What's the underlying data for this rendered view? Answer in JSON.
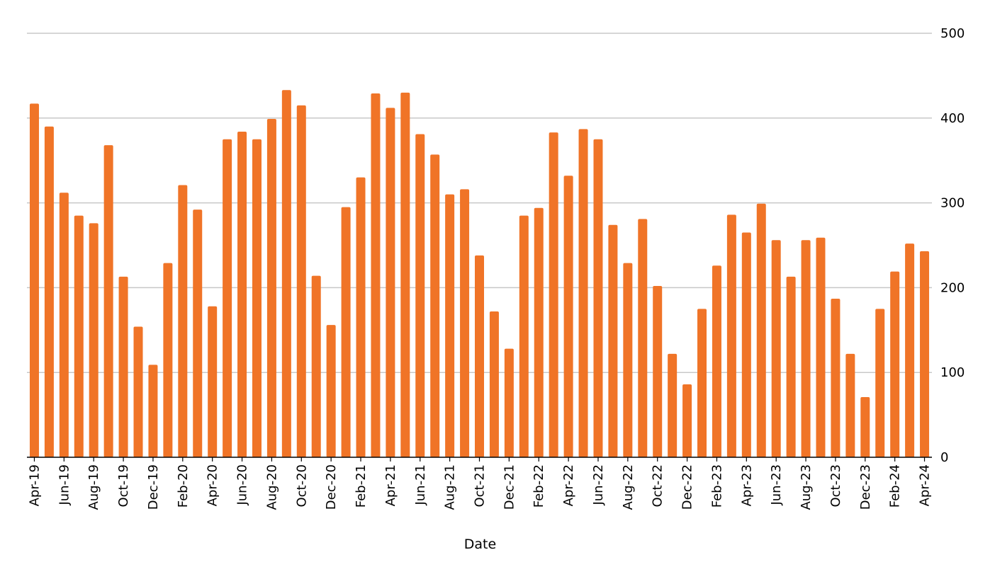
{
  "chart_data": {
    "type": "bar",
    "xlabel": "Date",
    "ylabel": "",
    "ylim": [
      0,
      500
    ],
    "y_ticks": [
      0,
      100,
      200,
      300,
      400,
      500
    ],
    "y_axis_side": "right",
    "grid": true,
    "legend": "none",
    "bar_color": "#F07427",
    "grid_color": "#C8C8C8",
    "categories": [
      "Apr-19",
      "May-19",
      "Jun-19",
      "Jul-19",
      "Aug-19",
      "Sep-19",
      "Oct-19",
      "Nov-19",
      "Dec-19",
      "Jan-20",
      "Feb-20",
      "Mar-20",
      "Apr-20",
      "May-20",
      "Jun-20",
      "Jul-20",
      "Aug-20",
      "Sep-20",
      "Oct-20",
      "Nov-20",
      "Dec-20",
      "Jan-21",
      "Feb-21",
      "Mar-21",
      "Apr-21",
      "May-21",
      "Jun-21",
      "Jul-21",
      "Aug-21",
      "Sep-21",
      "Oct-21",
      "Nov-21",
      "Dec-21",
      "Jan-22",
      "Feb-22",
      "Mar-22",
      "Apr-22",
      "May-22",
      "Jun-22",
      "Jul-22",
      "Aug-22",
      "Sep-22",
      "Oct-22",
      "Nov-22",
      "Dec-22",
      "Jan-23",
      "Feb-23",
      "Mar-23",
      "Apr-23",
      "May-23",
      "Jun-23",
      "Jul-23",
      "Aug-23",
      "Sep-23",
      "Oct-23",
      "Nov-23",
      "Dec-23",
      "Jan-24",
      "Feb-24",
      "Mar-24",
      "Apr-24"
    ],
    "tick_labels": [
      "Apr-19",
      "Jun-19",
      "Aug-19",
      "Oct-19",
      "Dec-19",
      "Feb-20",
      "Apr-20",
      "Jun-20",
      "Aug-20",
      "Oct-20",
      "Dec-20",
      "Feb-21",
      "Apr-21",
      "Jun-21",
      "Aug-21",
      "Oct-21",
      "Dec-21",
      "Feb-22",
      "Apr-22",
      "Jun-22",
      "Aug-22",
      "Oct-22",
      "Dec-22",
      "Feb-23",
      "Apr-23",
      "Jun-23",
      "Aug-23",
      "Oct-23",
      "Dec-23",
      "Feb-24",
      "Apr-24"
    ],
    "values": [
      417,
      390,
      312,
      285,
      276,
      368,
      213,
      154,
      109,
      229,
      321,
      292,
      178,
      375,
      384,
      375,
      399,
      433,
      415,
      214,
      156,
      295,
      330,
      429,
      412,
      430,
      381,
      357,
      310,
      316,
      238,
      172,
      128,
      285,
      294,
      383,
      332,
      387,
      375,
      274,
      229,
      281,
      202,
      122,
      86,
      175,
      226,
      286,
      265,
      299,
      256,
      213,
      256,
      259,
      187,
      122,
      71,
      175,
      219,
      252,
      243
    ]
  }
}
